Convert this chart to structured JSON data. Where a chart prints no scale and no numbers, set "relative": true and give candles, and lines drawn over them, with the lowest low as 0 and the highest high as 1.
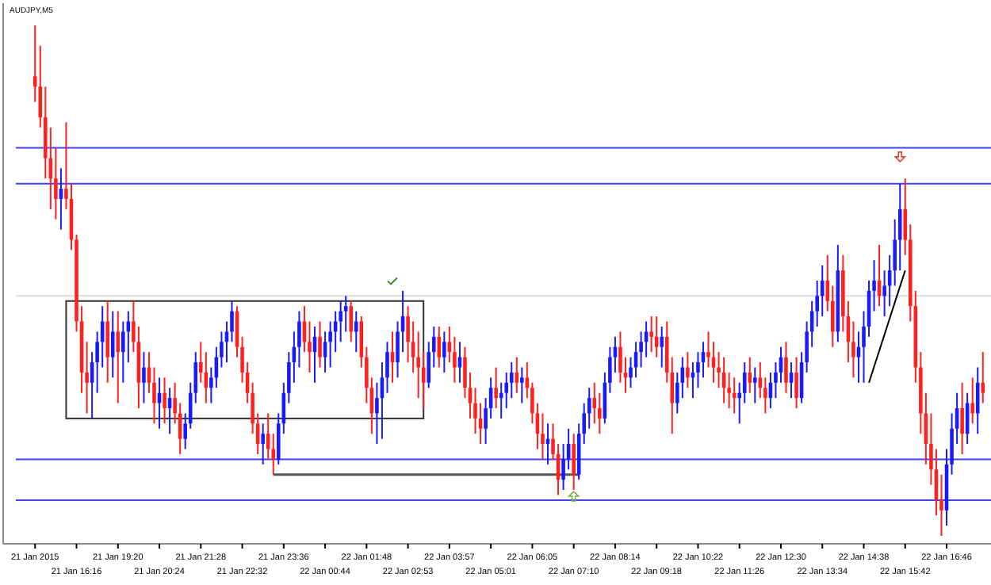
{
  "chart_data": {
    "type": "candlestick",
    "title": "AUDJPY,M5",
    "relative": true,
    "categories": [
      "21 Jan 2015",
      null,
      null,
      null,
      null,
      null,
      null,
      null,
      "21 Jan 16:16",
      null,
      null,
      null,
      null,
      null,
      null,
      null,
      "21 Jan 19:20",
      null,
      null,
      null,
      null,
      null,
      null,
      null,
      "21 Jan 20:24",
      null,
      null,
      null,
      null,
      null,
      null,
      null,
      "21 Jan 21:28",
      null,
      null,
      null,
      null,
      null,
      null,
      null,
      "21 Jan 22:32",
      null,
      null,
      null,
      null,
      null,
      null,
      null,
      "21 Jan 23:36",
      null,
      null,
      null,
      null,
      null,
      null,
      null,
      "22 Jan 00:44",
      null,
      null,
      null,
      null,
      null,
      null,
      null,
      "22 Jan 01:48",
      null,
      null,
      null,
      null,
      null,
      null,
      null,
      "22 Jan 02:53",
      null,
      null,
      null,
      null,
      null,
      null,
      null,
      "22 Jan 03:57",
      null,
      null,
      null,
      null,
      null,
      null,
      null,
      "22 Jan 05:01",
      null,
      null,
      null,
      null,
      null,
      null,
      null,
      "22 Jan 06:05",
      null,
      null,
      null,
      null,
      null,
      null,
      null,
      "22 Jan 07:10",
      null,
      null,
      null,
      null,
      null,
      null,
      null,
      "22 Jan 08:14",
      null,
      null,
      null,
      null,
      null,
      null,
      null,
      "22 Jan 09:18",
      null,
      null,
      null,
      null,
      null,
      null,
      null,
      "22 Jan 10:22",
      null,
      null,
      null,
      null,
      null,
      null,
      null,
      "22 Jan 11:26",
      null,
      null,
      null,
      null,
      null,
      null,
      null,
      "22 Jan 12:30",
      null,
      null,
      null,
      null,
      null,
      null,
      null,
      "22 Jan 13:34",
      null,
      null,
      null,
      null,
      null,
      null,
      null,
      "22 Jan 14:38",
      null,
      null,
      null,
      null,
      null,
      null,
      null,
      "22 Jan 15:42",
      null,
      null,
      null,
      null,
      null,
      null,
      null,
      "22 Jan 16:46",
      null,
      null,
      null,
      null,
      null,
      null,
      null
    ],
    "ohlc": [
      [
        0.9,
        1.0,
        0.85,
        0.88
      ],
      [
        0.88,
        0.96,
        0.8,
        0.82
      ],
      [
        0.82,
        0.88,
        0.7,
        0.74
      ],
      [
        0.74,
        0.8,
        0.64,
        0.7
      ],
      [
        0.7,
        0.76,
        0.62,
        0.66
      ],
      [
        0.66,
        0.72,
        0.6,
        0.68
      ],
      [
        0.68,
        0.81,
        0.64,
        0.66
      ],
      [
        0.66,
        0.69,
        0.56,
        0.58
      ],
      [
        0.58,
        0.59,
        0.4,
        0.42
      ],
      [
        0.42,
        0.45,
        0.28,
        0.32
      ],
      [
        0.32,
        0.38,
        0.24,
        0.3
      ],
      [
        0.3,
        0.36,
        0.23,
        0.34
      ],
      [
        0.34,
        0.4,
        0.28,
        0.38
      ],
      [
        0.38,
        0.45,
        0.33,
        0.42
      ],
      [
        0.42,
        0.46,
        0.3,
        0.35
      ],
      [
        0.35,
        0.44,
        0.31,
        0.4
      ],
      [
        0.4,
        0.44,
        0.26,
        0.36
      ],
      [
        0.36,
        0.42,
        0.3,
        0.4
      ],
      [
        0.4,
        0.44,
        0.34,
        0.42
      ],
      [
        0.42,
        0.46,
        0.36,
        0.38
      ],
      [
        0.38,
        0.41,
        0.25,
        0.3
      ],
      [
        0.3,
        0.36,
        0.26,
        0.33
      ],
      [
        0.33,
        0.36,
        0.28,
        0.3
      ],
      [
        0.3,
        0.33,
        0.22,
        0.26
      ],
      [
        0.26,
        0.31,
        0.21,
        0.28
      ],
      [
        0.28,
        0.31,
        0.22,
        0.25
      ],
      [
        0.25,
        0.29,
        0.2,
        0.27
      ],
      [
        0.27,
        0.3,
        0.22,
        0.24
      ],
      [
        0.24,
        0.26,
        0.16,
        0.19
      ],
      [
        0.19,
        0.24,
        0.17,
        0.22
      ],
      [
        0.22,
        0.3,
        0.21,
        0.28
      ],
      [
        0.28,
        0.36,
        0.26,
        0.34
      ],
      [
        0.34,
        0.38,
        0.3,
        0.32
      ],
      [
        0.32,
        0.36,
        0.26,
        0.29
      ],
      [
        0.29,
        0.33,
        0.26,
        0.31
      ],
      [
        0.31,
        0.37,
        0.29,
        0.35
      ],
      [
        0.35,
        0.4,
        0.33,
        0.38
      ],
      [
        0.38,
        0.42,
        0.34,
        0.4
      ],
      [
        0.4,
        0.46,
        0.38,
        0.44
      ],
      [
        0.44,
        0.45,
        0.35,
        0.37
      ],
      [
        0.37,
        0.39,
        0.3,
        0.32
      ],
      [
        0.32,
        0.34,
        0.26,
        0.28
      ],
      [
        0.28,
        0.3,
        0.2,
        0.22
      ],
      [
        0.22,
        0.24,
        0.16,
        0.18
      ],
      [
        0.18,
        0.22,
        0.14,
        0.2
      ],
      [
        0.2,
        0.24,
        0.15,
        0.17
      ],
      [
        0.17,
        0.2,
        0.12,
        0.15
      ],
      [
        0.15,
        0.24,
        0.14,
        0.22
      ],
      [
        0.22,
        0.3,
        0.2,
        0.28
      ],
      [
        0.28,
        0.36,
        0.26,
        0.34
      ],
      [
        0.34,
        0.4,
        0.3,
        0.37
      ],
      [
        0.37,
        0.44,
        0.33,
        0.42
      ],
      [
        0.42,
        0.45,
        0.36,
        0.38
      ],
      [
        0.38,
        0.42,
        0.32,
        0.36
      ],
      [
        0.36,
        0.41,
        0.3,
        0.39
      ],
      [
        0.39,
        0.42,
        0.33,
        0.35
      ],
      [
        0.35,
        0.4,
        0.32,
        0.38
      ],
      [
        0.38,
        0.42,
        0.33,
        0.4
      ],
      [
        0.4,
        0.44,
        0.36,
        0.42
      ],
      [
        0.42,
        0.46,
        0.38,
        0.44
      ],
      [
        0.44,
        0.47,
        0.4,
        0.45
      ],
      [
        0.45,
        0.46,
        0.38,
        0.4
      ],
      [
        0.4,
        0.44,
        0.36,
        0.42
      ],
      [
        0.42,
        0.43,
        0.33,
        0.35
      ],
      [
        0.35,
        0.37,
        0.26,
        0.29
      ],
      [
        0.29,
        0.31,
        0.2,
        0.24
      ],
      [
        0.24,
        0.3,
        0.18,
        0.27
      ],
      [
        0.27,
        0.34,
        0.19,
        0.31
      ],
      [
        0.31,
        0.38,
        0.28,
        0.36
      ],
      [
        0.36,
        0.4,
        0.3,
        0.34
      ],
      [
        0.34,
        0.42,
        0.31,
        0.4
      ],
      [
        0.4,
        0.48,
        0.36,
        0.43
      ],
      [
        0.43,
        0.45,
        0.34,
        0.38
      ],
      [
        0.38,
        0.42,
        0.32,
        0.35
      ],
      [
        0.35,
        0.4,
        0.27,
        0.33
      ],
      [
        0.33,
        0.36,
        0.25,
        0.3
      ],
      [
        0.3,
        0.38,
        0.29,
        0.36
      ],
      [
        0.36,
        0.41,
        0.33,
        0.39
      ],
      [
        0.39,
        0.41,
        0.33,
        0.35
      ],
      [
        0.35,
        0.4,
        0.32,
        0.38
      ],
      [
        0.38,
        0.41,
        0.34,
        0.36
      ],
      [
        0.36,
        0.39,
        0.3,
        0.33
      ],
      [
        0.33,
        0.38,
        0.3,
        0.35
      ],
      [
        0.35,
        0.37,
        0.27,
        0.29
      ],
      [
        0.29,
        0.32,
        0.23,
        0.26
      ],
      [
        0.26,
        0.29,
        0.2,
        0.23
      ],
      [
        0.23,
        0.26,
        0.18,
        0.21
      ],
      [
        0.21,
        0.27,
        0.18,
        0.25
      ],
      [
        0.25,
        0.31,
        0.23,
        0.29
      ],
      [
        0.29,
        0.33,
        0.25,
        0.27
      ],
      [
        0.27,
        0.3,
        0.23,
        0.28
      ],
      [
        0.28,
        0.32,
        0.25,
        0.3
      ],
      [
        0.3,
        0.34,
        0.27,
        0.32
      ],
      [
        0.32,
        0.35,
        0.28,
        0.3
      ],
      [
        0.3,
        0.33,
        0.26,
        0.31
      ],
      [
        0.31,
        0.34,
        0.27,
        0.29
      ],
      [
        0.29,
        0.3,
        0.22,
        0.24
      ],
      [
        0.24,
        0.26,
        0.17,
        0.2
      ],
      [
        0.2,
        0.24,
        0.15,
        0.18
      ],
      [
        0.18,
        0.22,
        0.14,
        0.19
      ],
      [
        0.19,
        0.22,
        0.15,
        0.16
      ],
      [
        0.16,
        0.18,
        0.08,
        0.11
      ],
      [
        0.11,
        0.18,
        0.09,
        0.15
      ],
      [
        0.15,
        0.21,
        0.13,
        0.18
      ],
      [
        0.18,
        0.2,
        0.09,
        0.12
      ],
      [
        0.12,
        0.22,
        0.11,
        0.2
      ],
      [
        0.2,
        0.26,
        0.18,
        0.24
      ],
      [
        0.24,
        0.29,
        0.21,
        0.27
      ],
      [
        0.27,
        0.3,
        0.22,
        0.25
      ],
      [
        0.25,
        0.28,
        0.2,
        0.23
      ],
      [
        0.23,
        0.32,
        0.22,
        0.3
      ],
      [
        0.3,
        0.37,
        0.28,
        0.35
      ],
      [
        0.35,
        0.39,
        0.32,
        0.37
      ],
      [
        0.37,
        0.4,
        0.3,
        0.32
      ],
      [
        0.32,
        0.35,
        0.28,
        0.31
      ],
      [
        0.31,
        0.35,
        0.29,
        0.33
      ],
      [
        0.33,
        0.38,
        0.31,
        0.36
      ],
      [
        0.36,
        0.4,
        0.33,
        0.38
      ],
      [
        0.38,
        0.42,
        0.35,
        0.4
      ],
      [
        0.4,
        0.43,
        0.36,
        0.39
      ],
      [
        0.39,
        0.43,
        0.35,
        0.37
      ],
      [
        0.37,
        0.41,
        0.33,
        0.39
      ],
      [
        0.39,
        0.42,
        0.3,
        0.32
      ],
      [
        0.32,
        0.35,
        0.2,
        0.26
      ],
      [
        0.26,
        0.32,
        0.24,
        0.3
      ],
      [
        0.3,
        0.35,
        0.27,
        0.33
      ],
      [
        0.33,
        0.36,
        0.29,
        0.31
      ],
      [
        0.31,
        0.34,
        0.27,
        0.32
      ],
      [
        0.32,
        0.36,
        0.29,
        0.34
      ],
      [
        0.34,
        0.38,
        0.31,
        0.36
      ],
      [
        0.36,
        0.4,
        0.33,
        0.35
      ],
      [
        0.35,
        0.38,
        0.3,
        0.33
      ],
      [
        0.33,
        0.36,
        0.29,
        0.32
      ],
      [
        0.32,
        0.35,
        0.26,
        0.29
      ],
      [
        0.29,
        0.32,
        0.25,
        0.28
      ],
      [
        0.28,
        0.31,
        0.24,
        0.27
      ],
      [
        0.27,
        0.3,
        0.22,
        0.28
      ],
      [
        0.28,
        0.34,
        0.26,
        0.32
      ],
      [
        0.32,
        0.35,
        0.28,
        0.3
      ],
      [
        0.3,
        0.33,
        0.26,
        0.31
      ],
      [
        0.31,
        0.34,
        0.27,
        0.29
      ],
      [
        0.29,
        0.31,
        0.24,
        0.27
      ],
      [
        0.27,
        0.32,
        0.25,
        0.3
      ],
      [
        0.3,
        0.34,
        0.27,
        0.32
      ],
      [
        0.32,
        0.37,
        0.3,
        0.35
      ],
      [
        0.35,
        0.38,
        0.28,
        0.3
      ],
      [
        0.3,
        0.34,
        0.27,
        0.32
      ],
      [
        0.32,
        0.35,
        0.25,
        0.27
      ],
      [
        0.27,
        0.36,
        0.26,
        0.34
      ],
      [
        0.34,
        0.42,
        0.32,
        0.4
      ],
      [
        0.4,
        0.46,
        0.37,
        0.44
      ],
      [
        0.44,
        0.5,
        0.41,
        0.47
      ],
      [
        0.47,
        0.53,
        0.43,
        0.5
      ],
      [
        0.5,
        0.55,
        0.44,
        0.46
      ],
      [
        0.46,
        0.49,
        0.37,
        0.4
      ],
      [
        0.4,
        0.57,
        0.38,
        0.52
      ],
      [
        0.52,
        0.55,
        0.4,
        0.43
      ],
      [
        0.43,
        0.46,
        0.34,
        0.38
      ],
      [
        0.38,
        0.42,
        0.31,
        0.35
      ],
      [
        0.35,
        0.4,
        0.3,
        0.37
      ],
      [
        0.37,
        0.44,
        0.3,
        0.41
      ],
      [
        0.41,
        0.5,
        0.39,
        0.48
      ],
      [
        0.48,
        0.54,
        0.44,
        0.5
      ],
      [
        0.5,
        0.57,
        0.45,
        0.47
      ],
      [
        0.47,
        0.52,
        0.43,
        0.49
      ],
      [
        0.49,
        0.55,
        0.45,
        0.52
      ],
      [
        0.52,
        0.62,
        0.49,
        0.58
      ],
      [
        0.58,
        0.69,
        0.52,
        0.64
      ],
      [
        0.64,
        0.7,
        0.55,
        0.58
      ],
      [
        0.58,
        0.61,
        0.42,
        0.45
      ],
      [
        0.45,
        0.48,
        0.3,
        0.33
      ],
      [
        0.33,
        0.36,
        0.2,
        0.24
      ],
      [
        0.24,
        0.28,
        0.14,
        0.18
      ],
      [
        0.18,
        0.24,
        0.1,
        0.13
      ],
      [
        0.13,
        0.17,
        0.04,
        0.07
      ],
      [
        0.07,
        0.12,
        0.0,
        0.05
      ],
      [
        0.05,
        0.17,
        0.02,
        0.14
      ],
      [
        0.14,
        0.24,
        0.12,
        0.21
      ],
      [
        0.21,
        0.28,
        0.18,
        0.25
      ],
      [
        0.25,
        0.3,
        0.16,
        0.2
      ],
      [
        0.2,
        0.28,
        0.18,
        0.26
      ],
      [
        0.26,
        0.31,
        0.22,
        0.24
      ],
      [
        0.24,
        0.33,
        0.2,
        0.3
      ],
      [
        0.3,
        0.36,
        0.26,
        0.28
      ]
    ],
    "ref_lines": [
      {
        "axis": "y",
        "value": 0.76,
        "color": "#4040ff"
      },
      {
        "axis": "y",
        "value": 0.69,
        "color": "#4040ff"
      },
      {
        "axis": "y",
        "value": 0.47,
        "color": "#dddddd"
      },
      {
        "axis": "y",
        "value": 0.15,
        "color": "#4040ff"
      },
      {
        "axis": "y",
        "value": 0.07,
        "color": "#4040ff"
      }
    ]
  }
}
